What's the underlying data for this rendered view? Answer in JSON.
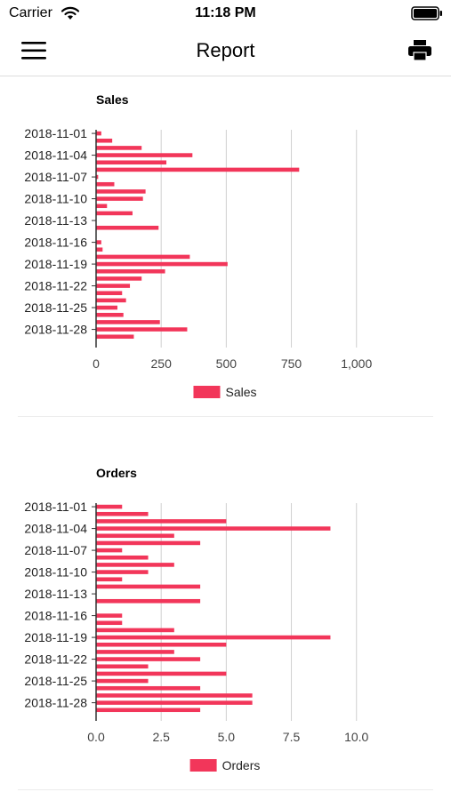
{
  "status_bar": {
    "carrier": "Carrier",
    "time": "11:18 PM",
    "icons": [
      "wifi-icon",
      "battery-icon"
    ]
  },
  "nav": {
    "title": "Report",
    "left_icon": "menu-icon",
    "right_icon": "print-icon"
  },
  "colors": {
    "bar": "#f2365a",
    "grid": "#cfcfcf",
    "axis": "#333333"
  },
  "chart_data": [
    {
      "type": "bar",
      "orientation": "horizontal",
      "title": "Sales",
      "categories": [
        "2018-11-01",
        "2018-11-02",
        "2018-11-03",
        "2018-11-04",
        "2018-11-05",
        "2018-11-06",
        "2018-11-07",
        "2018-11-08",
        "2018-11-09",
        "2018-11-10",
        "2018-11-11",
        "2018-11-12",
        "2018-11-13",
        "2018-11-14",
        "2018-11-15",
        "2018-11-16",
        "2018-11-17",
        "2018-11-18",
        "2018-11-19",
        "2018-11-20",
        "2018-11-21",
        "2018-11-22",
        "2018-11-23",
        "2018-11-24",
        "2018-11-25",
        "2018-11-26",
        "2018-11-27",
        "2018-11-28",
        "2018-11-29",
        "2018-11-30"
      ],
      "category_tick_labels": [
        "2018-11-01",
        "2018-11-04",
        "2018-11-07",
        "2018-11-10",
        "2018-11-13",
        "2018-11-16",
        "2018-11-19",
        "2018-11-22",
        "2018-11-25",
        "2018-11-28"
      ],
      "series": [
        {
          "name": "Sales",
          "values": [
            20,
            62,
            175,
            370,
            270,
            780,
            8,
            70,
            190,
            180,
            42,
            140,
            0,
            240,
            0,
            20,
            25,
            360,
            505,
            265,
            175,
            130,
            100,
            115,
            82,
            105,
            245,
            350,
            145,
            0
          ]
        }
      ],
      "xlim": [
        0,
        1100
      ],
      "x_ticks": [
        "0",
        "250",
        "500",
        "750",
        "1,000"
      ],
      "x_tick_values": [
        0,
        250,
        500,
        750,
        1000
      ],
      "grid": true,
      "legend": "bottom"
    },
    {
      "type": "bar",
      "orientation": "horizontal",
      "title": "Orders",
      "categories": [
        "2018-11-01",
        "2018-11-02",
        "2018-11-03",
        "2018-11-04",
        "2018-11-05",
        "2018-11-06",
        "2018-11-07",
        "2018-11-08",
        "2018-11-09",
        "2018-11-10",
        "2018-11-11",
        "2018-11-12",
        "2018-11-13",
        "2018-11-14",
        "2018-11-15",
        "2018-11-16",
        "2018-11-17",
        "2018-11-18",
        "2018-11-19",
        "2018-11-20",
        "2018-11-21",
        "2018-11-22",
        "2018-11-23",
        "2018-11-24",
        "2018-11-25",
        "2018-11-26",
        "2018-11-27",
        "2018-11-28",
        "2018-11-29",
        "2018-11-30"
      ],
      "category_tick_labels": [
        "2018-11-01",
        "2018-11-04",
        "2018-11-07",
        "2018-11-10",
        "2018-11-13",
        "2018-11-16",
        "2018-11-19",
        "2018-11-22",
        "2018-11-25",
        "2018-11-28"
      ],
      "series": [
        {
          "name": "Orders",
          "values": [
            1,
            2,
            5,
            9,
            3,
            4,
            1,
            2,
            3,
            2,
            1,
            4,
            0,
            4,
            0,
            1,
            1,
            3,
            9,
            5,
            3,
            4,
            2,
            5,
            2,
            4,
            6,
            6,
            4,
            0
          ]
        }
      ],
      "xlim": [
        0,
        11
      ],
      "x_ticks": [
        "0.0",
        "2.5",
        "5.0",
        "7.5",
        "10.0"
      ],
      "x_tick_values": [
        0,
        2.5,
        5,
        7.5,
        10
      ],
      "grid": true,
      "legend": "bottom"
    }
  ]
}
